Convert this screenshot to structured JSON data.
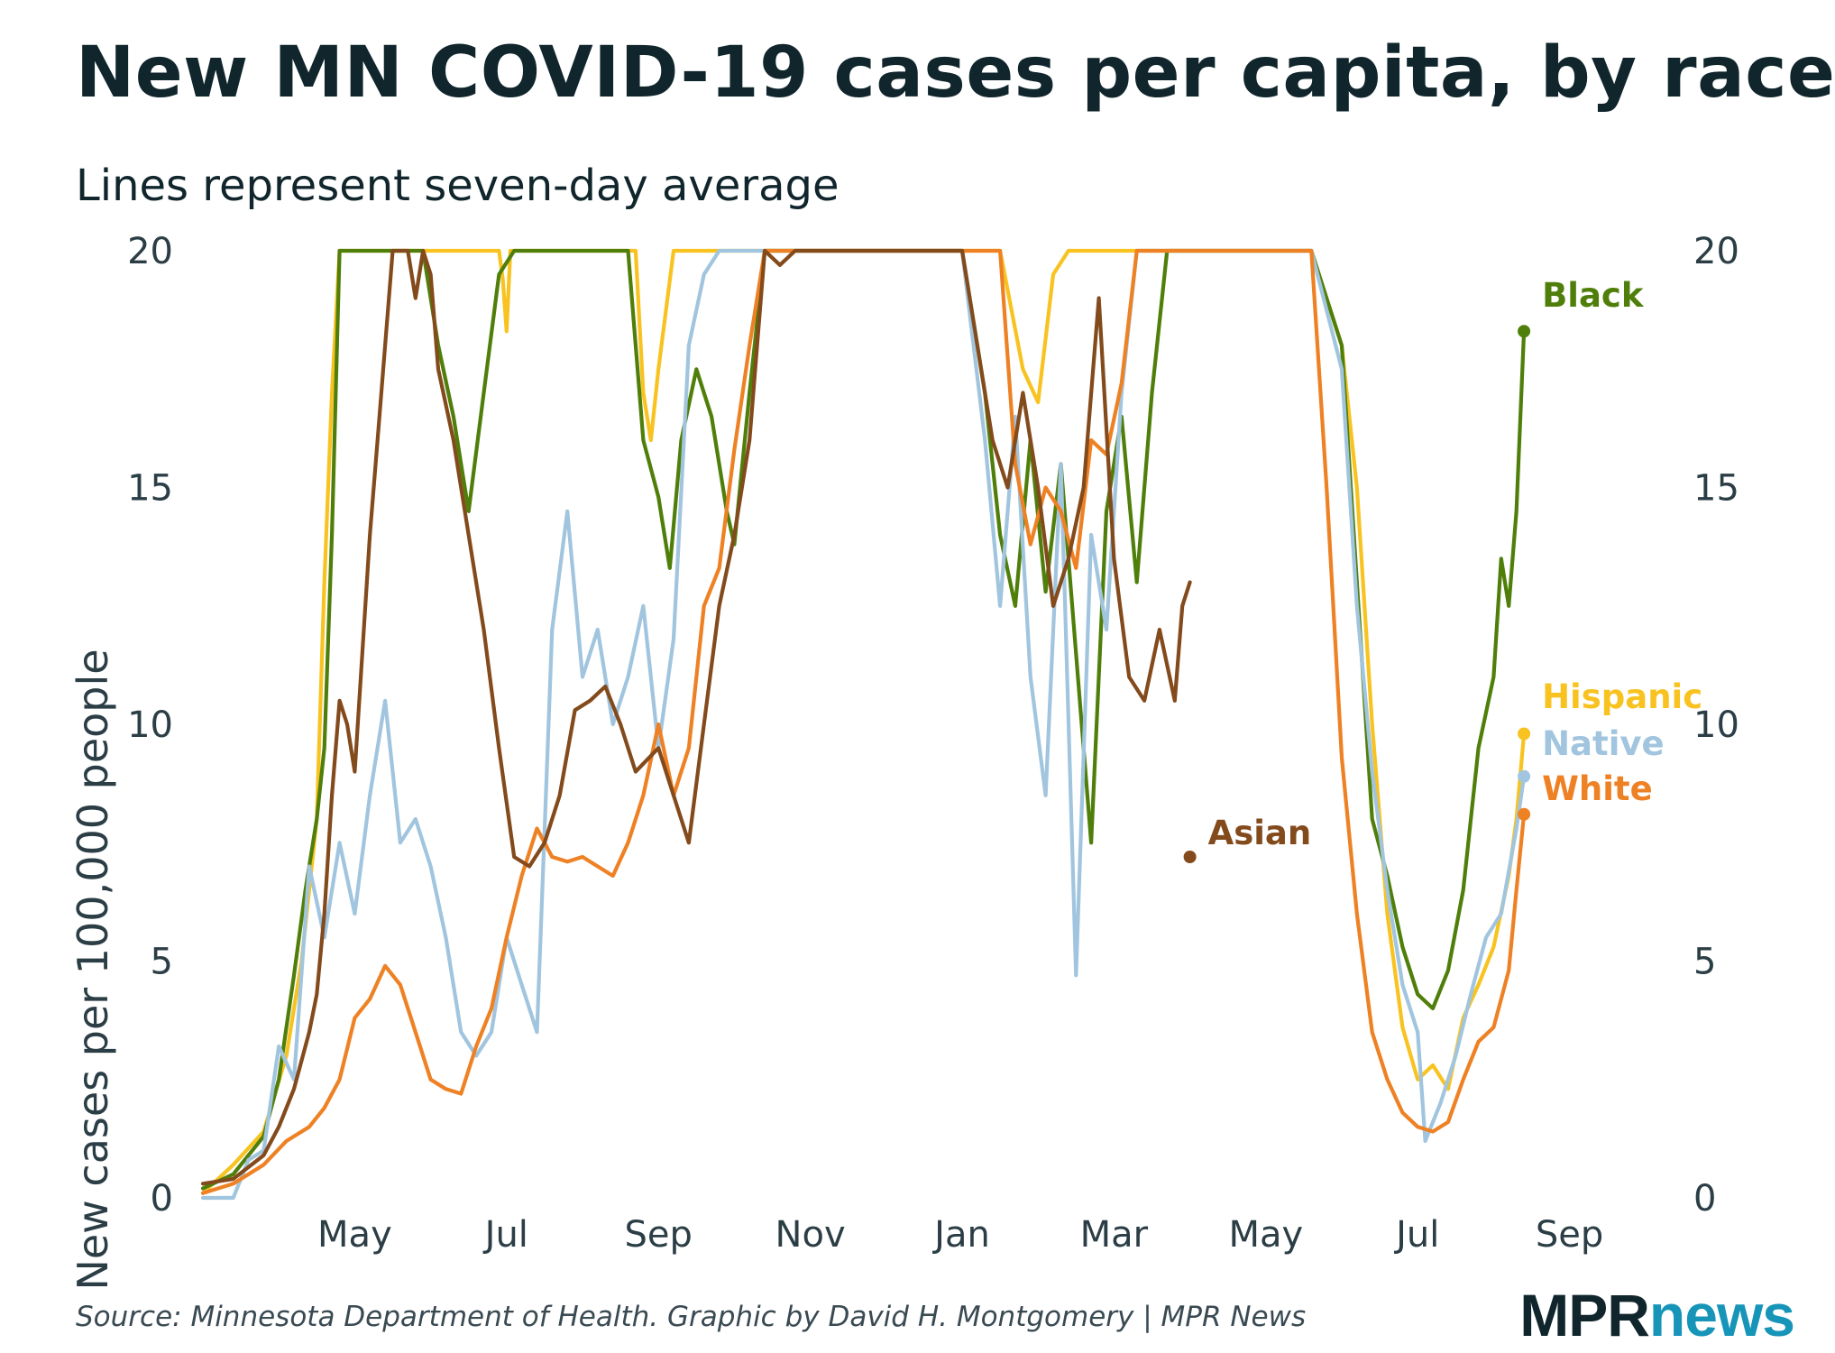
{
  "title": "New MN COVID-19 cases per capita, by race",
  "subtitle": "Lines represent seven-day average",
  "source": "Source: Minnesota Department of Health. Graphic by David H. Montgomery | MPR News",
  "logo": {
    "part1": "MPR",
    "part2": "news"
  },
  "chart_data": {
    "type": "line",
    "title": "New MN COVID-19 cases per capita, by race",
    "subtitle": "Lines represent seven-day average",
    "xlabel": "",
    "ylabel": "New cases per 100,000 people",
    "ylim": [
      0,
      20
    ],
    "yticks": [
      0,
      5,
      10,
      15,
      20
    ],
    "xlim": [
      0,
      25.3
    ],
    "x_unit": "months since Mar 1, 2020",
    "xticks": [
      {
        "x": 2,
        "label": "May"
      },
      {
        "x": 4,
        "label": "Jul"
      },
      {
        "x": 6,
        "label": "Sep"
      },
      {
        "x": 8,
        "label": "Nov"
      },
      {
        "x": 10,
        "label": "Jan"
      },
      {
        "x": 12,
        "label": "Mar"
      },
      {
        "x": 14,
        "label": "May"
      },
      {
        "x": 16,
        "label": "Jul"
      },
      {
        "x": 18,
        "label": "Sep"
      }
    ],
    "grid": false,
    "series": [
      {
        "name": "Black",
        "color": "#4f7f0a",
        "points": [
          [
            0,
            0.2
          ],
          [
            0.4,
            0.5
          ],
          [
            0.8,
            1.3
          ],
          [
            1.0,
            2.5
          ],
          [
            1.2,
            4.7
          ],
          [
            1.35,
            6.5
          ],
          [
            1.5,
            8
          ],
          [
            1.6,
            9.5
          ],
          [
            1.7,
            14
          ],
          [
            1.8,
            20
          ],
          [
            2.6,
            20
          ],
          [
            2.9,
            20
          ],
          [
            3.1,
            18
          ],
          [
            3.3,
            16.5
          ],
          [
            3.5,
            14.5
          ],
          [
            3.7,
            17
          ],
          [
            3.9,
            19.5
          ],
          [
            4.1,
            20
          ],
          [
            5.1,
            20
          ],
          [
            5.6,
            20
          ],
          [
            5.8,
            16
          ],
          [
            6.0,
            14.8
          ],
          [
            6.15,
            13.3
          ],
          [
            6.3,
            16
          ],
          [
            6.5,
            17.5
          ],
          [
            6.7,
            16.5
          ],
          [
            6.9,
            14.5
          ],
          [
            7.0,
            13.8
          ],
          [
            7.2,
            17
          ],
          [
            7.4,
            20
          ],
          [
            9.4,
            20
          ],
          [
            10.0,
            20
          ],
          [
            10.3,
            17
          ],
          [
            10.5,
            14
          ],
          [
            10.7,
            12.5
          ],
          [
            10.9,
            16
          ],
          [
            11.1,
            12.8
          ],
          [
            11.3,
            15.5
          ],
          [
            11.5,
            11.5
          ],
          [
            11.7,
            7.5
          ],
          [
            11.9,
            14.5
          ],
          [
            12.1,
            16.5
          ],
          [
            12.3,
            13
          ],
          [
            12.5,
            17
          ],
          [
            12.7,
            20
          ],
          [
            14.6,
            20
          ],
          [
            15.0,
            18
          ],
          [
            15.2,
            13
          ],
          [
            15.4,
            8
          ],
          [
            15.6,
            6.8
          ],
          [
            15.8,
            5.3
          ],
          [
            16.0,
            4.3
          ],
          [
            16.2,
            4
          ],
          [
            16.4,
            4.8
          ],
          [
            16.6,
            6.5
          ],
          [
            16.8,
            9.5
          ],
          [
            17.0,
            11
          ],
          [
            17.1,
            13.5
          ],
          [
            17.2,
            12.5
          ],
          [
            17.3,
            14.5
          ],
          [
            17.4,
            18.3
          ]
        ]
      },
      {
        "name": "Hispanic",
        "color": "#f8c320",
        "points": [
          [
            0,
            0.1
          ],
          [
            0.4,
            0.7
          ],
          [
            0.8,
            1.4
          ],
          [
            1.1,
            3
          ],
          [
            1.3,
            5
          ],
          [
            1.5,
            8
          ],
          [
            1.6,
            13
          ],
          [
            1.7,
            17
          ],
          [
            1.8,
            20
          ],
          [
            3.9,
            20
          ],
          [
            3.95,
            19.4
          ],
          [
            4.0,
            18.3
          ],
          [
            4.05,
            20
          ],
          [
            5.7,
            20
          ],
          [
            5.8,
            17
          ],
          [
            5.9,
            16
          ],
          [
            6.0,
            17.5
          ],
          [
            6.2,
            20
          ],
          [
            9.4,
            20
          ],
          [
            10.0,
            20
          ],
          [
            10.5,
            20
          ],
          [
            10.8,
            17.5
          ],
          [
            11.0,
            16.8
          ],
          [
            11.2,
            19.5
          ],
          [
            11.4,
            20
          ],
          [
            12.7,
            20
          ],
          [
            14.6,
            20
          ],
          [
            15.0,
            18
          ],
          [
            15.2,
            15
          ],
          [
            15.4,
            10
          ],
          [
            15.6,
            6
          ],
          [
            15.8,
            3.6
          ],
          [
            16.0,
            2.5
          ],
          [
            16.2,
            2.8
          ],
          [
            16.4,
            2.3
          ],
          [
            16.6,
            3.8
          ],
          [
            16.8,
            4.5
          ],
          [
            17.0,
            5.3
          ],
          [
            17.2,
            6.8
          ],
          [
            17.3,
            8
          ],
          [
            17.4,
            9.8
          ]
        ]
      },
      {
        "name": "Native",
        "color": "#a1c5df",
        "points": [
          [
            0,
            0
          ],
          [
            0.4,
            0
          ],
          [
            0.6,
            0.8
          ],
          [
            0.8,
            1
          ],
          [
            1.0,
            3.2
          ],
          [
            1.2,
            2.5
          ],
          [
            1.4,
            7
          ],
          [
            1.6,
            5.5
          ],
          [
            1.8,
            7.5
          ],
          [
            2.0,
            6
          ],
          [
            2.2,
            8.5
          ],
          [
            2.4,
            10.5
          ],
          [
            2.6,
            7.5
          ],
          [
            2.8,
            8
          ],
          [
            3.0,
            7
          ],
          [
            3.2,
            5.5
          ],
          [
            3.4,
            3.5
          ],
          [
            3.6,
            3
          ],
          [
            3.8,
            3.5
          ],
          [
            4.0,
            5.5
          ],
          [
            4.2,
            4.5
          ],
          [
            4.4,
            3.5
          ],
          [
            4.6,
            12
          ],
          [
            4.8,
            14.5
          ],
          [
            5.0,
            11
          ],
          [
            5.2,
            12
          ],
          [
            5.4,
            10
          ],
          [
            5.6,
            11
          ],
          [
            5.8,
            12.5
          ],
          [
            6.0,
            9.5
          ],
          [
            6.2,
            11.8
          ],
          [
            6.4,
            18
          ],
          [
            6.6,
            19.5
          ],
          [
            6.8,
            20
          ],
          [
            9.4,
            20
          ],
          [
            10.0,
            20
          ],
          [
            10.3,
            16
          ],
          [
            10.5,
            12.5
          ],
          [
            10.7,
            16.5
          ],
          [
            10.9,
            11
          ],
          [
            11.1,
            8.5
          ],
          [
            11.3,
            15.5
          ],
          [
            11.5,
            4.7
          ],
          [
            11.7,
            14
          ],
          [
            11.9,
            12
          ],
          [
            12.1,
            17
          ],
          [
            12.3,
            20
          ],
          [
            12.7,
            20
          ],
          [
            14.6,
            20
          ],
          [
            15.0,
            17.5
          ],
          [
            15.2,
            12.5
          ],
          [
            15.4,
            9
          ],
          [
            15.6,
            6.5
          ],
          [
            15.8,
            4.5
          ],
          [
            16.0,
            3.5
          ],
          [
            16.1,
            1.2
          ],
          [
            16.3,
            2
          ],
          [
            16.5,
            3
          ],
          [
            16.7,
            4.3
          ],
          [
            16.9,
            5.5
          ],
          [
            17.1,
            6
          ],
          [
            17.3,
            7.8
          ],
          [
            17.4,
            8.9
          ]
        ]
      },
      {
        "name": "White",
        "color": "#ee8124",
        "points": [
          [
            0,
            0.1
          ],
          [
            0.4,
            0.3
          ],
          [
            0.8,
            0.7
          ],
          [
            1.1,
            1.2
          ],
          [
            1.4,
            1.5
          ],
          [
            1.6,
            1.9
          ],
          [
            1.8,
            2.5
          ],
          [
            2.0,
            3.8
          ],
          [
            2.2,
            4.2
          ],
          [
            2.4,
            4.9
          ],
          [
            2.6,
            4.5
          ],
          [
            2.8,
            3.5
          ],
          [
            3.0,
            2.5
          ],
          [
            3.2,
            2.3
          ],
          [
            3.4,
            2.2
          ],
          [
            3.6,
            3.2
          ],
          [
            3.8,
            4
          ],
          [
            4.0,
            5.5
          ],
          [
            4.2,
            6.8
          ],
          [
            4.4,
            7.8
          ],
          [
            4.6,
            7.2
          ],
          [
            4.8,
            7.1
          ],
          [
            5.0,
            7.2
          ],
          [
            5.2,
            7
          ],
          [
            5.4,
            6.8
          ],
          [
            5.6,
            7.5
          ],
          [
            5.8,
            8.5
          ],
          [
            6.0,
            10
          ],
          [
            6.2,
            8.5
          ],
          [
            6.4,
            9.5
          ],
          [
            6.6,
            12.5
          ],
          [
            6.8,
            13.3
          ],
          [
            7.0,
            15.8
          ],
          [
            7.2,
            18
          ],
          [
            7.4,
            20
          ],
          [
            9.4,
            20
          ],
          [
            10.0,
            20
          ],
          [
            10.5,
            20
          ],
          [
            10.7,
            15.5
          ],
          [
            10.9,
            13.8
          ],
          [
            11.1,
            15
          ],
          [
            11.3,
            14.5
          ],
          [
            11.5,
            13.3
          ],
          [
            11.7,
            16
          ],
          [
            11.9,
            15.7
          ],
          [
            12.1,
            17.2
          ],
          [
            12.3,
            20
          ],
          [
            12.7,
            20
          ],
          [
            14.6,
            20
          ],
          [
            14.8,
            15
          ],
          [
            15.0,
            9.3
          ],
          [
            15.2,
            6
          ],
          [
            15.4,
            3.5
          ],
          [
            15.6,
            2.5
          ],
          [
            15.8,
            1.8
          ],
          [
            16.0,
            1.5
          ],
          [
            16.2,
            1.4
          ],
          [
            16.4,
            1.6
          ],
          [
            16.6,
            2.5
          ],
          [
            16.8,
            3.3
          ],
          [
            17.0,
            3.6
          ],
          [
            17.2,
            4.8
          ],
          [
            17.3,
            6.5
          ],
          [
            17.4,
            8.1
          ]
        ]
      },
      {
        "name": "Asian",
        "color": "#834a1c",
        "points": [
          [
            0,
            0.3
          ],
          [
            0.4,
            0.4
          ],
          [
            0.8,
            0.9
          ],
          [
            1.0,
            1.5
          ],
          [
            1.2,
            2.3
          ],
          [
            1.4,
            3.5
          ],
          [
            1.5,
            4.3
          ],
          [
            1.6,
            6
          ],
          [
            1.7,
            8.5
          ],
          [
            1.8,
            10.5
          ],
          [
            1.9,
            10
          ],
          [
            2.0,
            9
          ],
          [
            2.2,
            14
          ],
          [
            2.3,
            16
          ],
          [
            2.5,
            20
          ],
          [
            2.7,
            20
          ],
          [
            2.8,
            19
          ],
          [
            2.9,
            20
          ],
          [
            3.0,
            19.5
          ],
          [
            3.1,
            17.5
          ],
          [
            3.3,
            16
          ],
          [
            3.5,
            14
          ],
          [
            3.7,
            12
          ],
          [
            3.9,
            9.5
          ],
          [
            4.1,
            7.2
          ],
          [
            4.3,
            7
          ],
          [
            4.5,
            7.5
          ],
          [
            4.7,
            8.5
          ],
          [
            4.9,
            10.3
          ],
          [
            5.1,
            10.5
          ],
          [
            5.3,
            10.8
          ],
          [
            5.5,
            10
          ],
          [
            5.7,
            9
          ],
          [
            6.0,
            9.5
          ],
          [
            6.2,
            8.5
          ],
          [
            6.4,
            7.5
          ],
          [
            6.6,
            10
          ],
          [
            6.8,
            12.5
          ],
          [
            7.0,
            14
          ],
          [
            7.2,
            16
          ],
          [
            7.4,
            20
          ],
          [
            7.6,
            19.7
          ],
          [
            7.8,
            20
          ],
          [
            9.4,
            20
          ],
          [
            10.0,
            20
          ],
          [
            10.4,
            16
          ],
          [
            10.6,
            15
          ],
          [
            10.8,
            17
          ],
          [
            11.0,
            15
          ],
          [
            11.2,
            12.5
          ],
          [
            11.4,
            13.5
          ],
          [
            11.6,
            15
          ],
          [
            11.8,
            19
          ],
          [
            12.0,
            13.5
          ],
          [
            12.2,
            11
          ],
          [
            12.4,
            10.5
          ],
          [
            12.6,
            12
          ],
          [
            12.8,
            10.5
          ],
          [
            12.9,
            12.5
          ],
          [
            13.0,
            13
          ]
        ]
      }
    ],
    "segment_breaks": {
      "Asian": [
        [
          13.0,
          14.6
        ]
      ]
    },
    "end_labels": [
      {
        "series": "Black",
        "value": 18.3,
        "label": "Black"
      },
      {
        "series": "Hispanic",
        "value": 9.8,
        "label": "Hispanic"
      },
      {
        "series": "Native",
        "value": 8.9,
        "label": "Native"
      },
      {
        "series": "White",
        "value": 8.1,
        "label": "White"
      },
      {
        "series": "Asian",
        "value": 7.2,
        "label": "Asian"
      }
    ]
  }
}
